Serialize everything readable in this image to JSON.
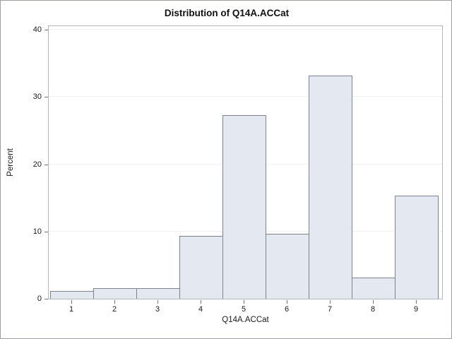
{
  "chart_data": {
    "type": "bar",
    "subtype": "histogram",
    "title": "Distribution of Q14A.ACCat",
    "xlabel": "Q14A.ACCat",
    "ylabel": "Percent",
    "categories": [
      "1",
      "2",
      "3",
      "4",
      "5",
      "6",
      "7",
      "8",
      "9"
    ],
    "values": [
      1.2,
      1.6,
      1.6,
      9.4,
      27.3,
      9.7,
      33.2,
      3.1,
      15.3
    ],
    "ylim": [
      0,
      40
    ],
    "yticks": [
      0,
      10,
      20,
      30,
      40
    ],
    "grid": "horizontal",
    "legend": "none",
    "bar_fill_color": "#e4e8f1",
    "bar_border_color": "#7d828c",
    "frame_color": "#b3b6ba",
    "gridline_color": "#f1f1f2",
    "background_color": "#ffffff"
  }
}
